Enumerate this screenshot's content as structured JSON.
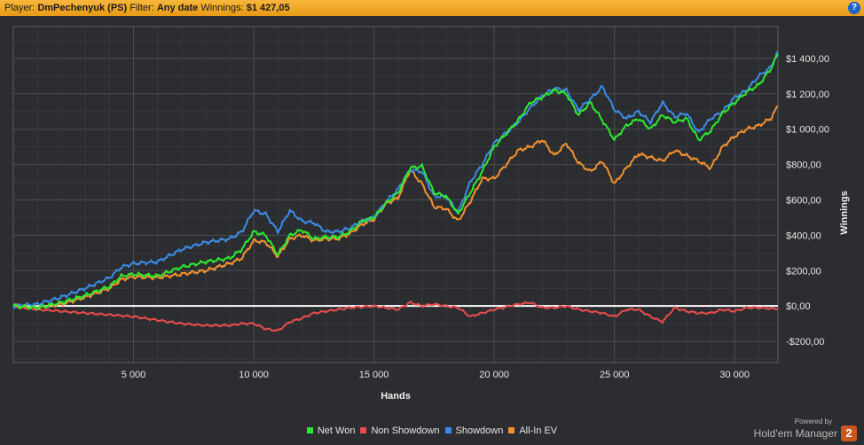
{
  "header": {
    "player_label": "Player:",
    "player_name": "DmPechenyuk (PS)",
    "filter_label": "Filter:",
    "filter_value": "Any date",
    "winnings_label": "Winnings:",
    "winnings_value": "$1 427,05",
    "help_glyph": "?"
  },
  "branding": {
    "powered_by": "Powered by",
    "product": "Hold'em Manager",
    "badge": "2"
  },
  "colors": {
    "background": "#2b2d30",
    "header_bar": "#f0a828",
    "net_won": "#2ee82e",
    "non_showdown": "#e84c4c",
    "showdown": "#3c8ce6",
    "all_in_ev": "#f2912f",
    "zero_line": "#ffffff"
  },
  "chart_data": {
    "type": "line",
    "xlabel": "Hands",
    "ylabel": "Winnings",
    "xlim": [
      0,
      31800
    ],
    "ylim": [
      -320,
      1580
    ],
    "x_ticks": [
      5000,
      10000,
      15000,
      20000,
      25000,
      30000
    ],
    "x_tick_labels": [
      "5 000",
      "10 000",
      "15 000",
      "20 000",
      "25 000",
      "30 000"
    ],
    "y_ticks": [
      -200,
      0,
      200,
      400,
      600,
      800,
      1000,
      1200,
      1400
    ],
    "y_tick_labels": [
      "-$200,00",
      "$0,00",
      "$200,00",
      "$400,00",
      "$600,00",
      "$800,00",
      "$1 000,00",
      "$1 200,00",
      "$1 400,00"
    ],
    "grid": true,
    "axis_position": "right",
    "legend_position": "bottom",
    "x": [
      0,
      1000,
      2000,
      3000,
      4000,
      4500,
      5000,
      6000,
      7000,
      8000,
      9000,
      9500,
      10000,
      10500,
      11000,
      11500,
      12000,
      12500,
      13000,
      13500,
      14000,
      14500,
      15000,
      15500,
      16000,
      16500,
      17000,
      17500,
      18000,
      18500,
      19000,
      19500,
      20000,
      21000,
      21500,
      22000,
      22500,
      23000,
      23500,
      24000,
      24500,
      25000,
      25500,
      26000,
      26500,
      27000,
      27500,
      28000,
      28500,
      29000,
      29500,
      30000,
      30500,
      31000,
      31500,
      31800
    ],
    "series": [
      {
        "name": "Net Won",
        "color": "#2ee82e",
        "values": [
          0,
          -10,
          20,
          60,
          110,
          170,
          180,
          170,
          220,
          250,
          270,
          320,
          420,
          400,
          290,
          400,
          430,
          380,
          390,
          390,
          420,
          480,
          500,
          580,
          640,
          780,
          790,
          640,
          620,
          520,
          640,
          760,
          900,
          1050,
          1150,
          1180,
          1220,
          1200,
          1080,
          1150,
          1050,
          940,
          1020,
          1060,
          1000,
          1080,
          1040,
          1060,
          940,
          990,
          1090,
          1150,
          1210,
          1250,
          1340,
          1427
        ]
      },
      {
        "name": "Non Showdown",
        "color": "#e84c4c",
        "values": [
          0,
          -20,
          -30,
          -40,
          -50,
          -55,
          -60,
          -80,
          -100,
          -110,
          -110,
          -100,
          -100,
          -130,
          -140,
          -90,
          -70,
          -40,
          -30,
          -20,
          -10,
          -5,
          0,
          -10,
          -20,
          20,
          0,
          10,
          0,
          -10,
          -60,
          -40,
          -20,
          10,
          20,
          -10,
          -10,
          0,
          -20,
          -30,
          -40,
          -60,
          -20,
          -20,
          -60,
          -90,
          -10,
          -30,
          -40,
          -40,
          -20,
          -30,
          -10,
          -10,
          -15,
          -15
        ]
      },
      {
        "name": "Showdown",
        "color": "#3c8ce6",
        "values": [
          0,
          10,
          50,
          100,
          160,
          220,
          240,
          250,
          320,
          360,
          380,
          420,
          540,
          520,
          420,
          540,
          480,
          470,
          420,
          420,
          440,
          480,
          500,
          590,
          660,
          770,
          760,
          620,
          620,
          530,
          700,
          800,
          920,
          1040,
          1120,
          1190,
          1230,
          1220,
          1110,
          1170,
          1240,
          1110,
          1060,
          1100,
          1040,
          1150,
          1070,
          1090,
          980,
          1060,
          1100,
          1180,
          1220,
          1300,
          1350,
          1440
        ]
      },
      {
        "name": "All-In EV",
        "color": "#f2912f",
        "values": [
          0,
          -10,
          10,
          50,
          100,
          150,
          165,
          160,
          180,
          200,
          240,
          270,
          370,
          360,
          280,
          380,
          400,
          370,
          380,
          380,
          410,
          460,
          490,
          580,
          610,
          770,
          690,
          560,
          550,
          480,
          590,
          720,
          720,
          880,
          900,
          940,
          850,
          920,
          810,
          760,
          820,
          690,
          780,
          860,
          840,
          820,
          880,
          850,
          820,
          780,
          900,
          960,
          1000,
          1020,
          1060,
          1130
        ]
      }
    ]
  }
}
